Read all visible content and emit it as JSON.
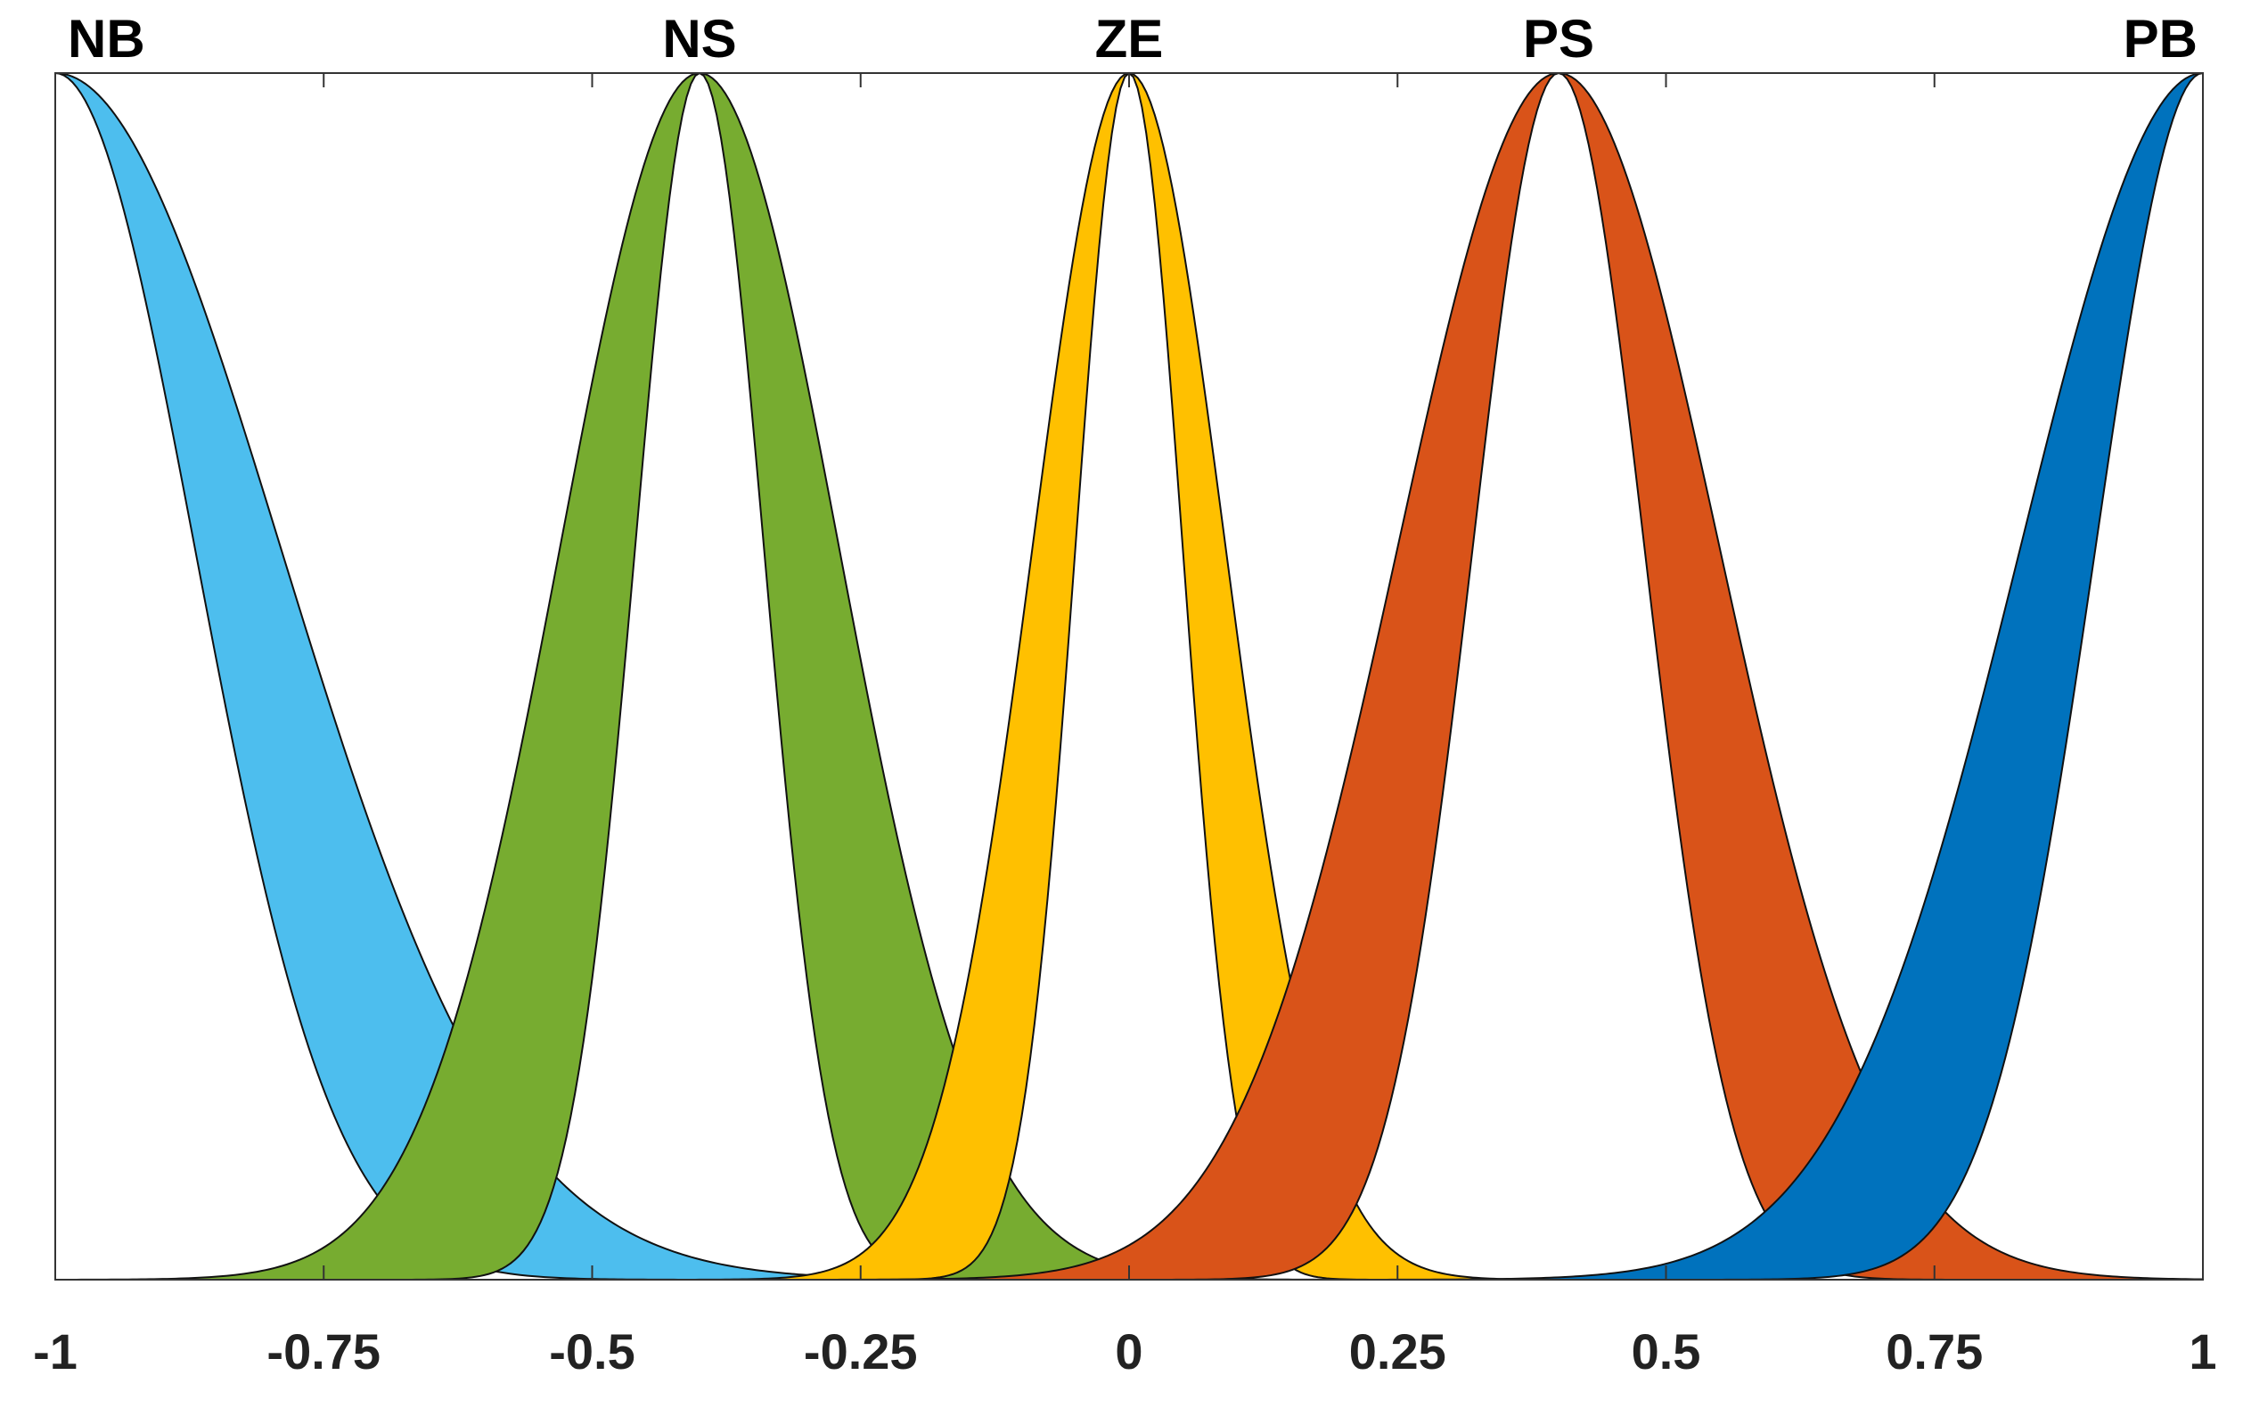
{
  "chart_data": {
    "type": "area",
    "title": "",
    "xlabel": "",
    "ylabel": "",
    "xlim": [
      -1,
      1
    ],
    "ylim": [
      0,
      1
    ],
    "grid": false,
    "x_ticks": [
      -1,
      -0.75,
      -0.5,
      -0.25,
      0,
      0.25,
      0.5,
      0.75,
      1
    ],
    "x_tick_labels": [
      "-1",
      "-0.75",
      "-0.5",
      "-0.25",
      "0",
      "0.25",
      "0.5",
      "0.75",
      "1"
    ],
    "series": [
      {
        "name": "NB",
        "shape": "gaussian-band",
        "center": -1.0,
        "sigma_lower": 0.13,
        "sigma_upper": 0.21,
        "color": "#4DBEEE"
      },
      {
        "name": "NS",
        "shape": "gaussian-band",
        "center": -0.4,
        "sigma_lower": 0.06,
        "sigma_upper": 0.13,
        "color": "#77AC30"
      },
      {
        "name": "ZE",
        "shape": "gaussian-band",
        "center": 0.0,
        "sigma_lower": 0.05,
        "sigma_upper": 0.09,
        "color": "#FFC000"
      },
      {
        "name": "PS",
        "shape": "gaussian-band",
        "center": 0.4,
        "sigma_lower": 0.08,
        "sigma_upper": 0.15,
        "color": "#D95319"
      },
      {
        "name": "PB",
        "shape": "gaussian-band",
        "center": 1.0,
        "sigma_lower": 0.1,
        "sigma_upper": 0.17,
        "color": "#0072BD"
      }
    ]
  }
}
